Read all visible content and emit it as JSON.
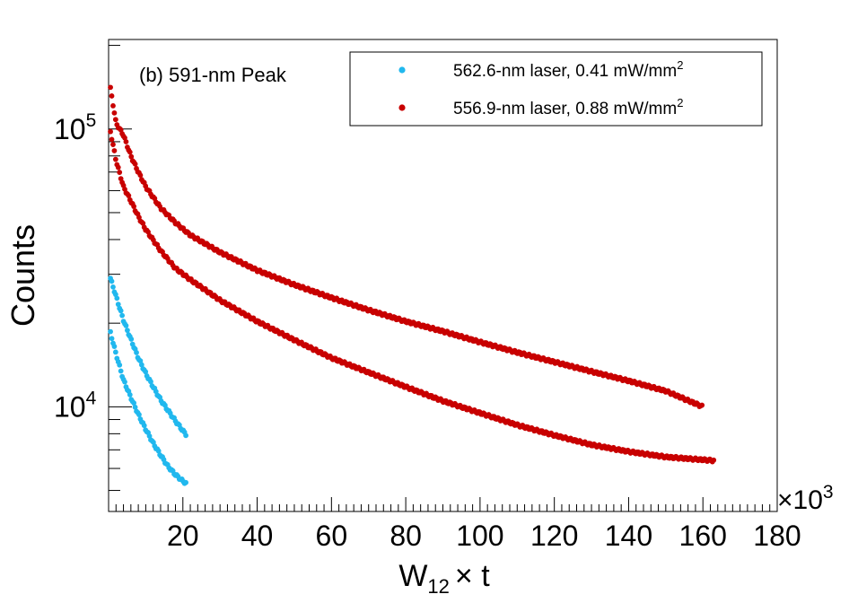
{
  "chart_data": {
    "type": "scatter",
    "annotation": "(b) 591-nm Peak",
    "xlabel": {
      "main": "W",
      "sub": "12",
      "rest": "× t"
    },
    "ylabel": "Counts",
    "x_multiplier": {
      "sign": "×",
      "base": "10",
      "exp": "3"
    },
    "xlim": [
      0,
      180
    ],
    "ylim": [
      4200,
      210000
    ],
    "yscale": "log",
    "x_ticks": [
      20,
      40,
      60,
      80,
      100,
      120,
      140,
      160,
      180
    ],
    "y_tick_labels": [
      {
        "value": 10000,
        "base": "10",
        "exp": "4"
      },
      {
        "value": 100000,
        "base": "10",
        "exp": "5"
      }
    ],
    "legend_position": "top-right",
    "series": [
      {
        "name": "562.6-nm laser, 0.41 mW/mm",
        "name_sup": "2",
        "color": "#21b8ee",
        "curves": [
          {
            "x": [
              0.5,
              2,
              4,
              6,
              8,
              10,
              12,
              14,
              16,
              18,
              20,
              21
            ],
            "y": [
              29000,
              25000,
              20500,
              17500,
              15000,
              13200,
              11800,
              10600,
              9700,
              8900,
              8200,
              7900
            ]
          },
          {
            "x": [
              0.5,
              2,
              4,
              6,
              8,
              10,
              12,
              14,
              16,
              18,
              20,
              21
            ],
            "y": [
              18500,
              15500,
              12500,
              10800,
              9400,
              8300,
              7400,
              6700,
              6100,
              5700,
              5400,
              5300
            ]
          }
        ]
      },
      {
        "name": "556.9-nm laser, 0.88 mW/mm",
        "name_sup": "2",
        "color": "#c80000",
        "curves": [
          {
            "x": [
              0.5,
              2,
              4,
              6,
              8,
              10,
              14,
              18,
              22,
              30,
              40,
              50,
              60,
              70,
              80,
              90,
              100,
              110,
              120,
              130,
              140,
              150,
              160
            ],
            "y": [
              140000,
              105000,
              95000,
              80000,
              70000,
              62000,
              52000,
              46000,
              41500,
              36000,
              31000,
              27500,
              24700,
              22300,
              20300,
              18700,
              17100,
              15700,
              14500,
              13400,
              12400,
              11400,
              10000
            ]
          },
          {
            "x": [
              0.5,
              2,
              4,
              6,
              8,
              10,
              14,
              18,
              22,
              30,
              40,
              50,
              60,
              70,
              80,
              90,
              100,
              110,
              120,
              130,
              140,
              150,
              163
            ],
            "y": [
              98000,
              77000,
              62000,
              55000,
              48500,
              43500,
              36500,
              31500,
              28700,
              24200,
              20300,
              17400,
              15000,
              13300,
              11800,
              10500,
              9500,
              8600,
              7900,
              7300,
              6900,
              6600,
              6400
            ]
          }
        ]
      }
    ]
  }
}
